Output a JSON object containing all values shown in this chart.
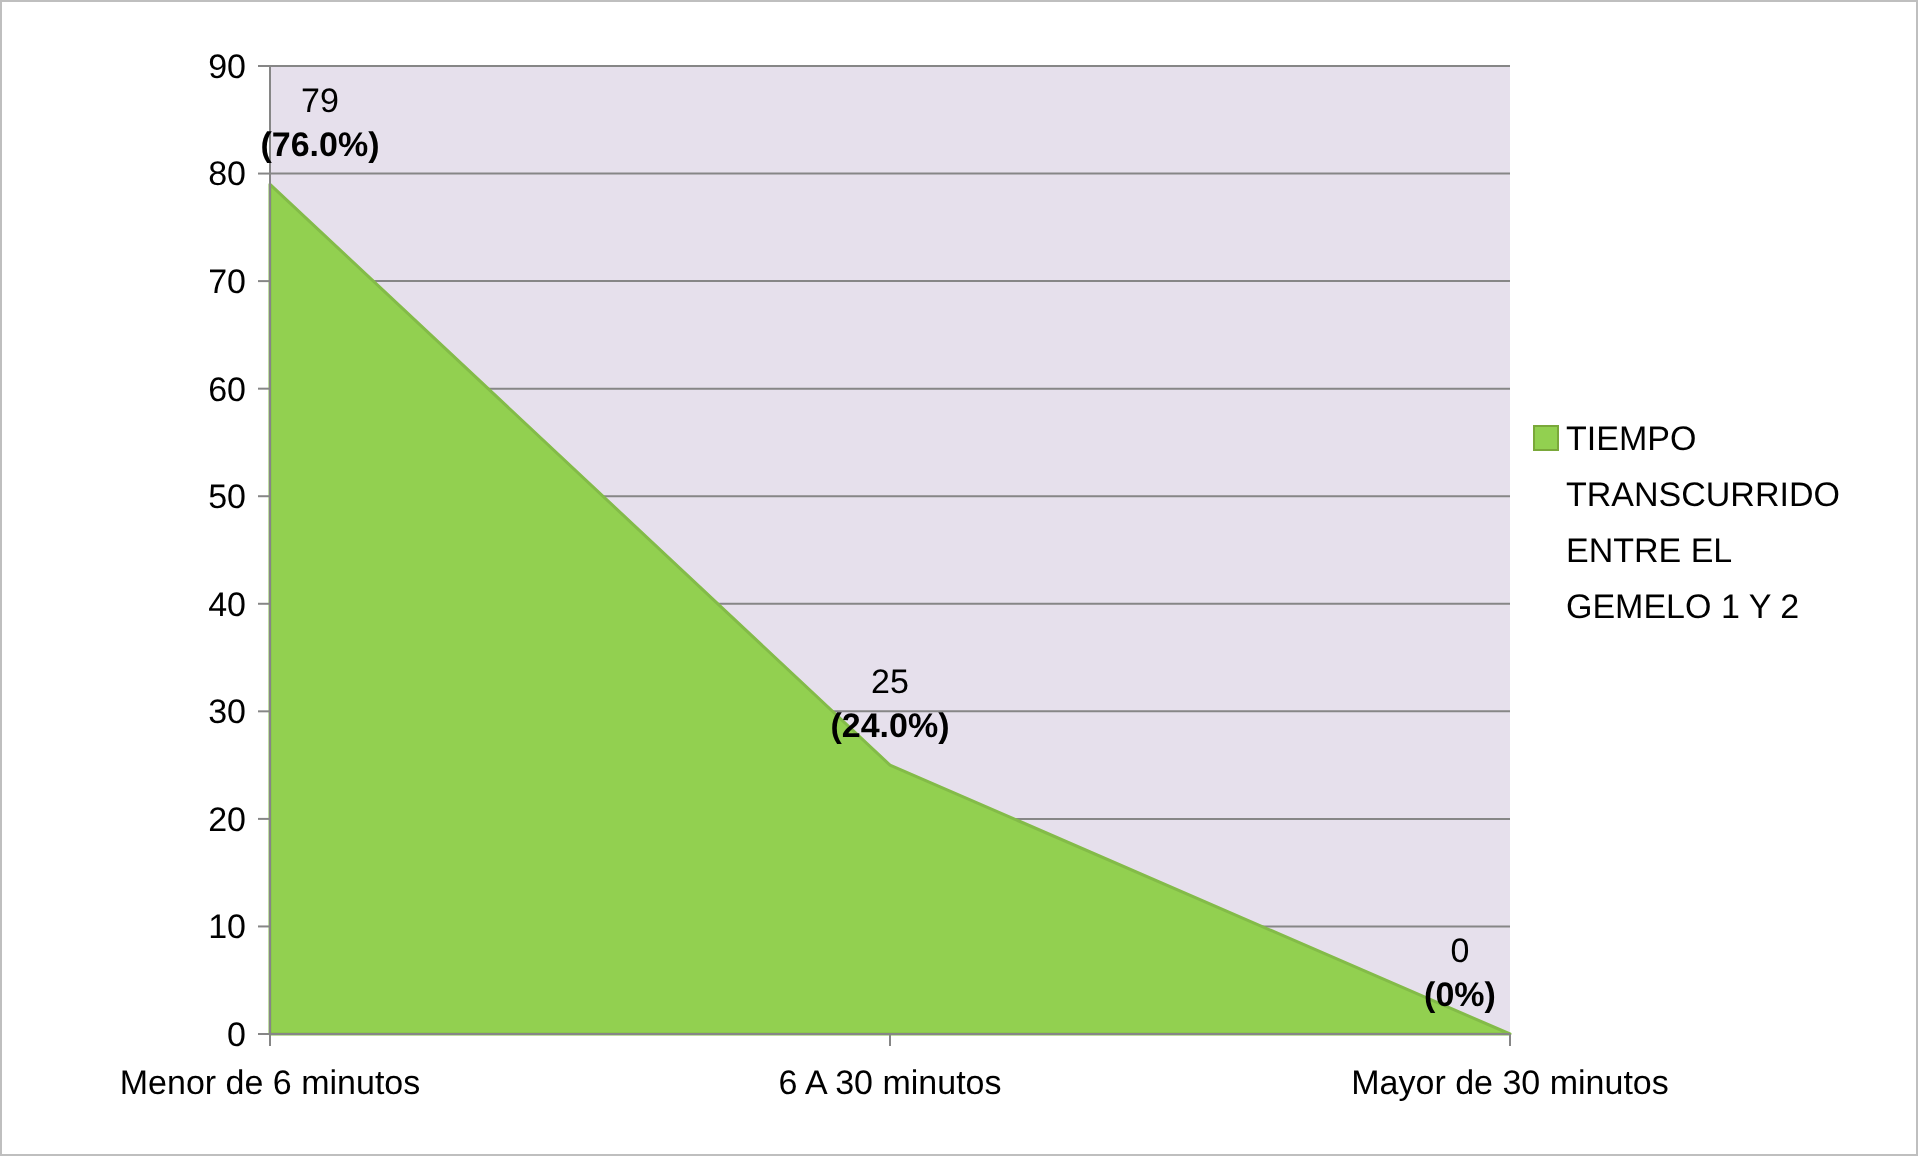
{
  "chart_data": {
    "type": "area",
    "categories": [
      "Menor de 6 minutos",
      "6 A 30 minutos",
      "Mayor de 30 minutos"
    ],
    "series": [
      {
        "name": "TIEMPO TRANSCURRIDO ENTRE EL GEMELO 1 Y 2",
        "color": "#92d050",
        "values": [
          79,
          25,
          0
        ],
        "value_labels": [
          "79\n(76.0%)",
          "25\n(24.0%)",
          "0\n(0%)"
        ]
      }
    ],
    "ylim": [
      0,
      90
    ],
    "yticks": [
      0,
      10,
      20,
      30,
      40,
      50,
      60,
      70,
      80,
      90
    ],
    "grid": "y",
    "legend": "right"
  }
}
